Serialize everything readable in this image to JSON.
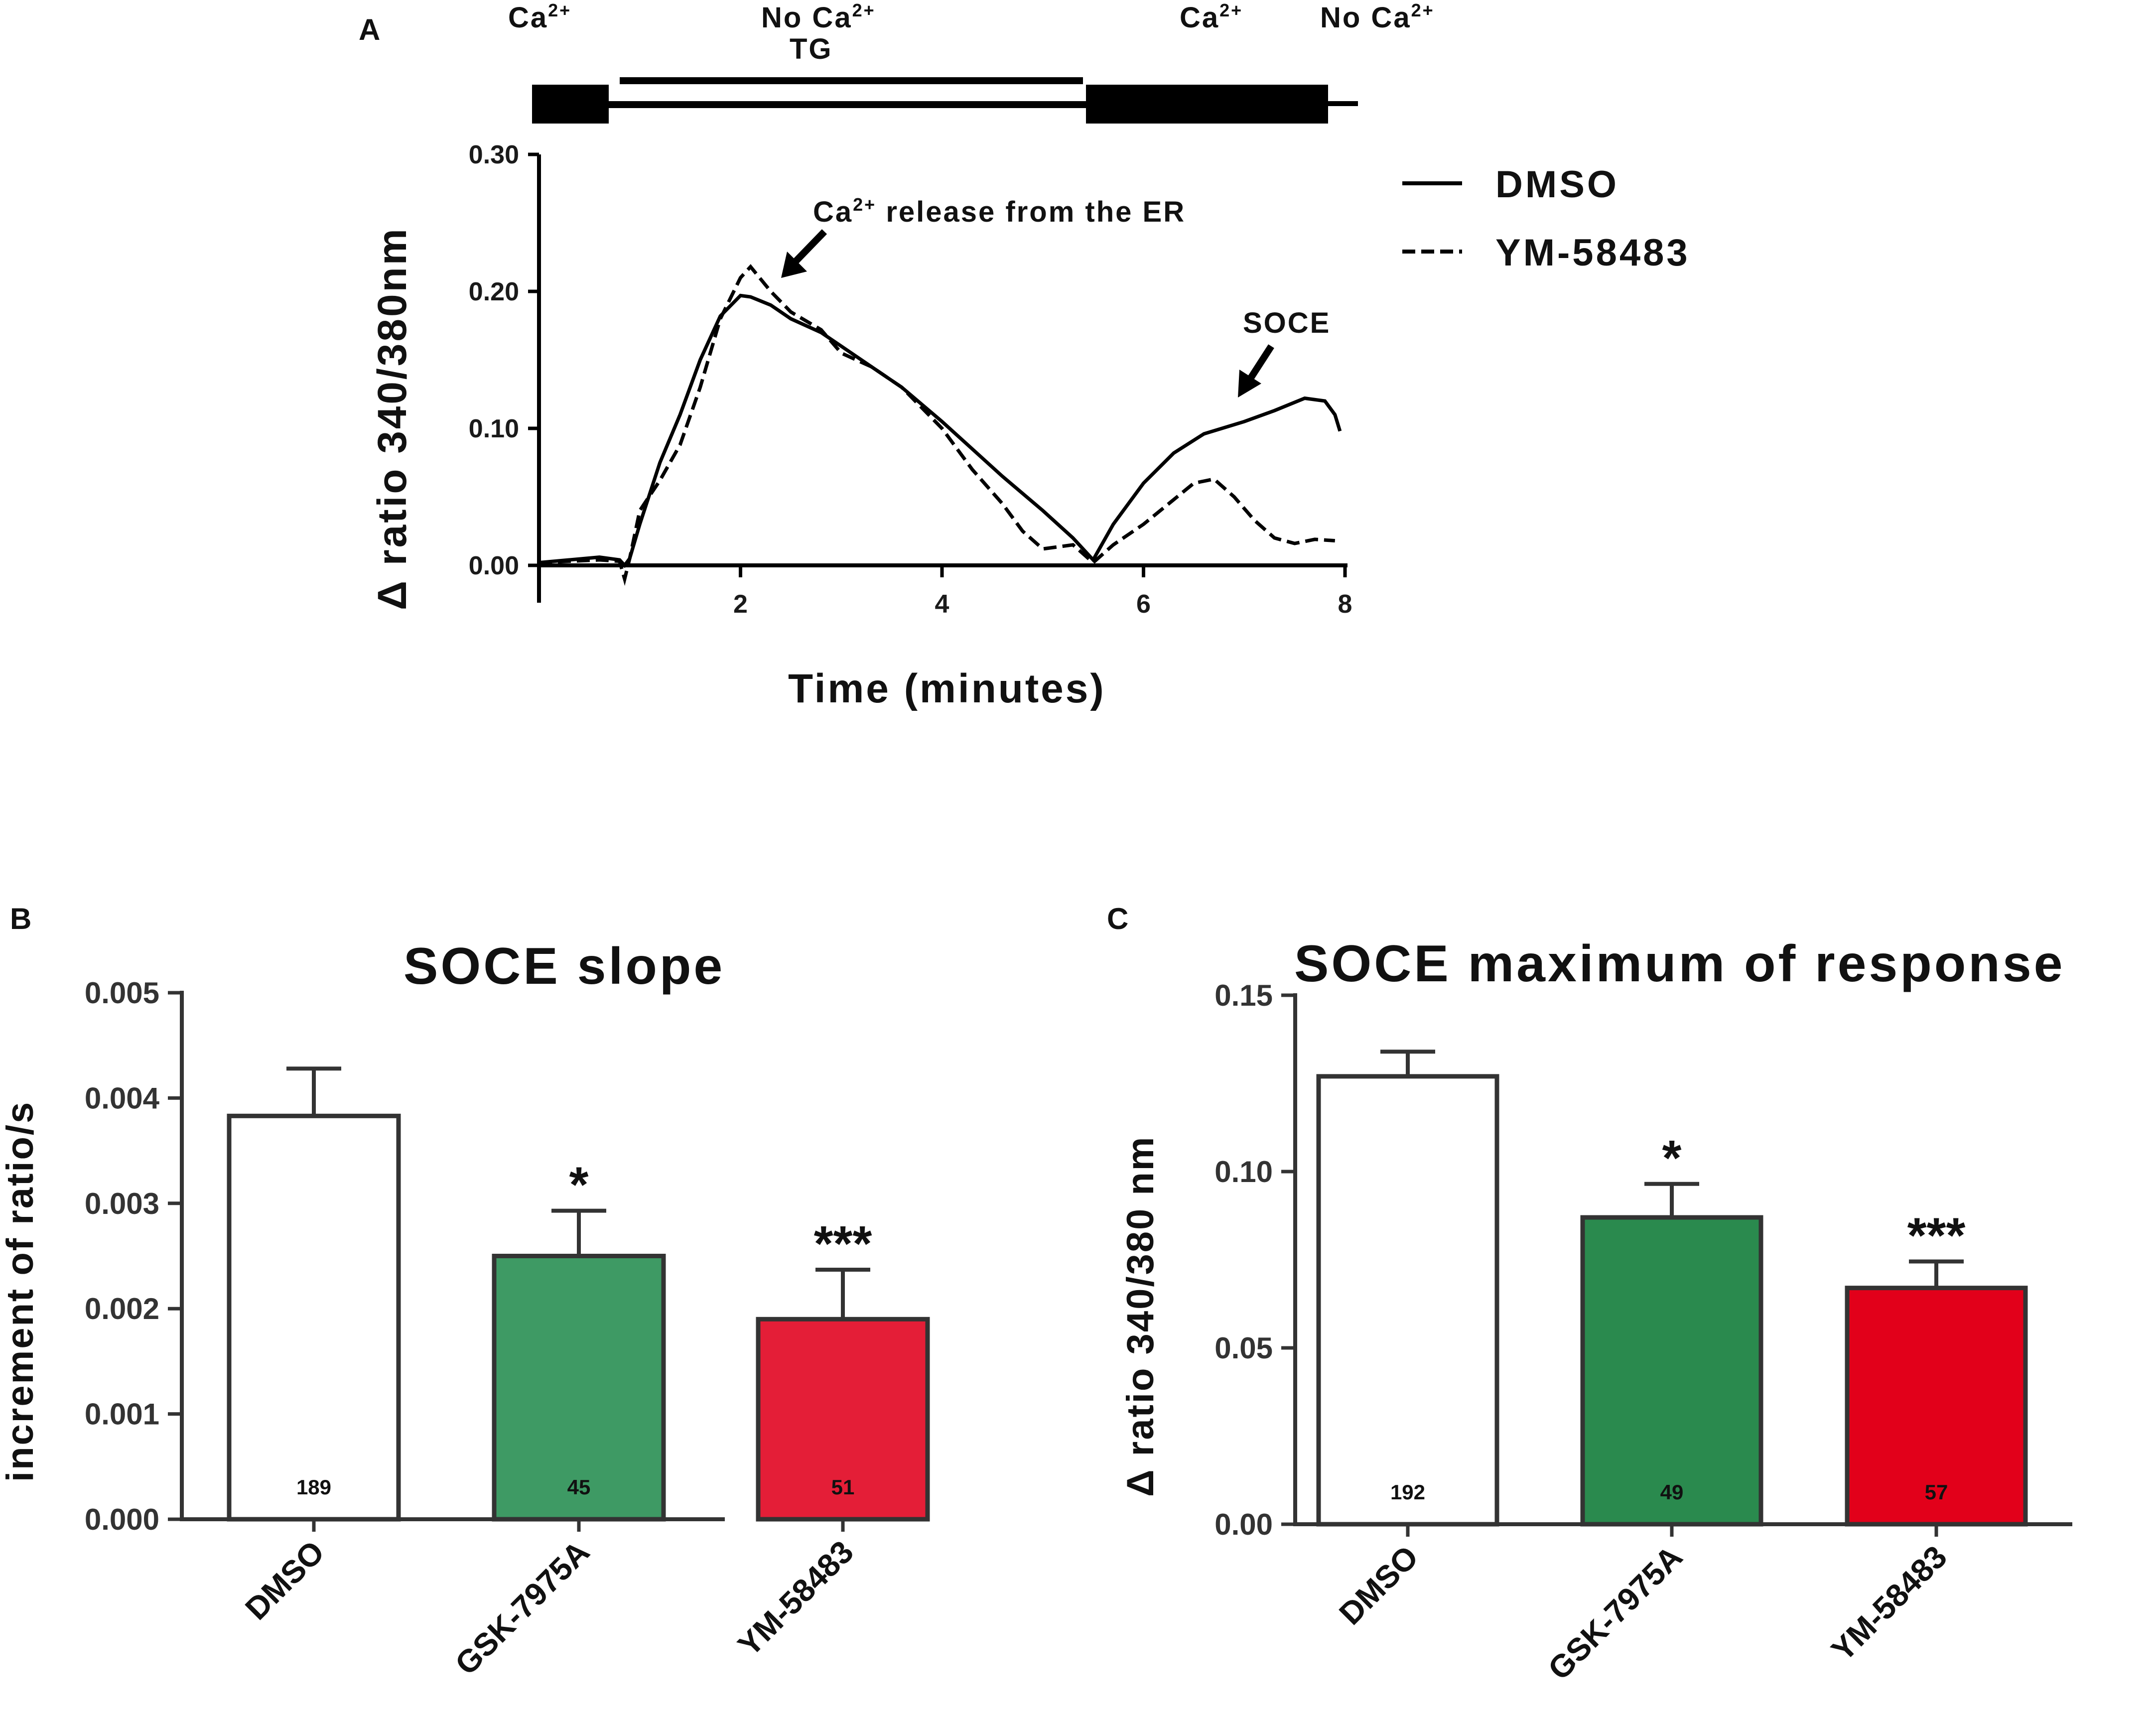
{
  "figure": {
    "panel_a": {
      "letter": "A",
      "protocol": {
        "ca_left": "Ca",
        "ca_left_sup": "2+",
        "no_ca_1": "No Ca",
        "no_ca_1_sup": "2+",
        "tg": "TG",
        "ca_right": "Ca",
        "ca_right_sup": "2+",
        "no_ca_2": "No Ca",
        "no_ca_2_sup": "2+"
      },
      "annotation_er_prefix": "Ca",
      "annotation_er_sup": "2+",
      "annotation_er_text": " release from the ER",
      "annotation_soce": "SOCE",
      "ylabel": "Δ ratio 340/380nm"
    },
    "panel_b": {
      "letter": "B"
    },
    "panel_c": {
      "letter": "C"
    }
  },
  "chart_data": [
    {
      "type": "line",
      "panel": "A",
      "xlabel": "Time (minutes)",
      "ylabel": "Δ ratio 340/380nm",
      "xlim": [
        0,
        8
      ],
      "ylim": [
        0,
        0.3
      ],
      "x_ticks": [
        2,
        4,
        6,
        8
      ],
      "y_ticks": [
        "0.00",
        "0.10",
        "0.20",
        "0.30"
      ],
      "legend_position": "top-right",
      "series": [
        {
          "name": "DMSO",
          "style": "solid",
          "x": [
            0,
            0.3,
            0.6,
            0.8,
            0.85,
            0.9,
            1.0,
            1.2,
            1.4,
            1.6,
            1.8,
            2.0,
            2.1,
            2.3,
            2.5,
            2.8,
            3.0,
            3.3,
            3.6,
            4.0,
            4.3,
            4.6,
            5.0,
            5.3,
            5.5,
            5.7,
            6.0,
            6.3,
            6.6,
            7.0,
            7.3,
            7.6,
            7.8,
            7.9,
            7.95
          ],
          "y": [
            0.002,
            0.004,
            0.006,
            0.004,
            0.0,
            0.005,
            0.03,
            0.075,
            0.11,
            0.15,
            0.182,
            0.197,
            0.196,
            0.19,
            0.18,
            0.17,
            0.16,
            0.145,
            0.13,
            0.105,
            0.085,
            0.065,
            0.04,
            0.02,
            0.004,
            0.03,
            0.06,
            0.082,
            0.096,
            0.105,
            0.113,
            0.122,
            0.12,
            0.11,
            0.098
          ]
        },
        {
          "name": "YM-58483",
          "style": "dashed",
          "x": [
            0,
            0.3,
            0.6,
            0.8,
            0.85,
            0.9,
            1.0,
            1.2,
            1.4,
            1.6,
            1.8,
            2.0,
            2.1,
            2.3,
            2.5,
            2.8,
            3.0,
            3.3,
            3.6,
            4.0,
            4.3,
            4.6,
            4.8,
            5.0,
            5.3,
            5.5,
            5.7,
            6.0,
            6.3,
            6.5,
            6.7,
            6.9,
            7.1,
            7.3,
            7.5,
            7.7,
            7.9
          ],
          "y": [
            0.002,
            0.003,
            0.004,
            0.003,
            -0.01,
            0.005,
            0.04,
            0.062,
            0.088,
            0.13,
            0.18,
            0.21,
            0.218,
            0.2,
            0.185,
            0.172,
            0.155,
            0.145,
            0.13,
            0.1,
            0.07,
            0.045,
            0.025,
            0.012,
            0.015,
            0.002,
            0.015,
            0.03,
            0.048,
            0.06,
            0.063,
            0.05,
            0.033,
            0.02,
            0.016,
            0.019,
            0.018
          ]
        }
      ]
    },
    {
      "type": "bar",
      "panel": "B",
      "title": "SOCE slope",
      "ylabel": "increment of ratio/s",
      "xlabel": "",
      "categories": [
        "DMSO",
        "GSK-7975A",
        "YM-58483"
      ],
      "values": [
        0.00383,
        0.0025,
        0.0019
      ],
      "errors": [
        0.00045,
        0.00043,
        0.00047
      ],
      "counts": [
        "189",
        "45",
        "51"
      ],
      "significance": [
        "",
        "*",
        "***"
      ],
      "colors": [
        "#ffffff",
        "#3e9a64",
        "#e41e37"
      ],
      "ylim": [
        0,
        0.005
      ],
      "y_ticks": [
        "0.000",
        "0.001",
        "0.002",
        "0.003",
        "0.004",
        "0.005"
      ]
    },
    {
      "type": "bar",
      "panel": "C",
      "title": "SOCE maximum of response",
      "ylabel": "Δ ratio 340/380 nm",
      "xlabel": "",
      "categories": [
        "DMSO",
        "GSK-7975A",
        "YM-58483"
      ],
      "values": [
        0.127,
        0.087,
        0.067
      ],
      "errors": [
        0.007,
        0.0095,
        0.0075
      ],
      "counts": [
        "192",
        "49",
        "57"
      ],
      "significance": [
        "",
        "*",
        "***"
      ],
      "colors": [
        "#ffffff",
        "#2a8a4e",
        "#e2001a"
      ],
      "ylim": [
        0,
        0.15
      ],
      "y_ticks": [
        "0.00",
        "0.05",
        "0.10",
        "0.15"
      ]
    }
  ]
}
